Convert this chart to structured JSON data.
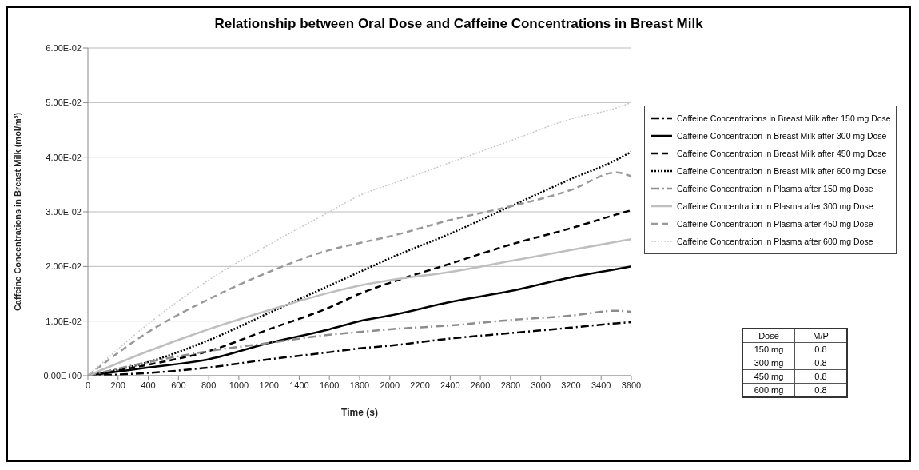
{
  "chart_data": {
    "type": "line",
    "title": "Relationship between Oral Dose and Caffeine Concentrations in Breast Milk",
    "xlabel": "Time (s)",
    "ylabel": "Caffeine Concentrations in Breast Milk (mol/m³)",
    "x": [
      0,
      400,
      800,
      1200,
      1600,
      1800,
      2000,
      2400,
      2800,
      3200,
      3500,
      3600
    ],
    "series": [
      {
        "name": "Caffeine Concentrations in Breast Milk after 150 mg Dose",
        "color": "#000000",
        "line_style": "dashdot",
        "values": [
          0,
          0.0005,
          0.0015,
          0.003,
          0.0043,
          0.005,
          0.0055,
          0.0068,
          0.0078,
          0.0088,
          0.0096,
          0.0098
        ]
      },
      {
        "name": "Caffeine Concentration in Breast Milk after 300 mg Dose",
        "color": "#000000",
        "line_style": "solid",
        "values": [
          0,
          0.0015,
          0.003,
          0.006,
          0.0085,
          0.01,
          0.011,
          0.0135,
          0.0155,
          0.018,
          0.0195,
          0.02
        ]
      },
      {
        "name": "Caffeine Concentration in Breast Milk after 450 mg Dose",
        "color": "#000000",
        "line_style": "dashed",
        "values": [
          0,
          0.002,
          0.0045,
          0.0085,
          0.0125,
          0.015,
          0.017,
          0.0205,
          0.024,
          0.027,
          0.0295,
          0.0303
        ]
      },
      {
        "name": "Caffeine Concentration in Breast Milk after 600 mg Dose",
        "color": "#000000",
        "line_style": "dotted",
        "values": [
          0,
          0.0025,
          0.0065,
          0.0115,
          0.0165,
          0.019,
          0.0215,
          0.026,
          0.031,
          0.036,
          0.0395,
          0.041
        ]
      },
      {
        "name": "Caffeine Concentration in Plasma after 150 mg Dose",
        "color": "#8c8c8c",
        "line_style": "dashdot",
        "values": [
          0,
          0.0025,
          0.0045,
          0.006,
          0.0075,
          0.008,
          0.0085,
          0.0092,
          0.0102,
          0.011,
          0.0119,
          0.0117
        ]
      },
      {
        "name": "Caffeine Concentration in Plasma after 300 mg Dose",
        "color": "#bfbfbf",
        "line_style": "solid",
        "values": [
          0,
          0.0045,
          0.0085,
          0.012,
          0.0152,
          0.0165,
          0.0175,
          0.019,
          0.021,
          0.023,
          0.0245,
          0.025
        ]
      },
      {
        "name": "Caffeine Concentration in Plasma after 450 mg Dose",
        "color": "#999999",
        "line_style": "dashed",
        "values": [
          0,
          0.008,
          0.014,
          0.019,
          0.023,
          0.0243,
          0.0255,
          0.0285,
          0.031,
          0.034,
          0.0372,
          0.0365
        ]
      },
      {
        "name": "Caffeine Concentration in Plasma after 600 mg Dose",
        "color": "#c8c8c8",
        "line_style": "dotted",
        "values": [
          0,
          0.0095,
          0.0175,
          0.024,
          0.03,
          0.033,
          0.035,
          0.039,
          0.043,
          0.047,
          0.049,
          0.05
        ]
      }
    ],
    "xlim": [
      0,
      3600
    ],
    "xticks": [
      0,
      200,
      400,
      600,
      800,
      1000,
      1200,
      1400,
      1600,
      1800,
      2000,
      2200,
      2400,
      2600,
      2800,
      3000,
      3200,
      3400,
      3600
    ],
    "ylim": [
      0,
      0.06
    ],
    "yticks": [
      {
        "value": 0,
        "label": "0.00E+00"
      },
      {
        "value": 0.01,
        "label": "1.00E-02"
      },
      {
        "value": 0.02,
        "label": "2.00E-02"
      },
      {
        "value": 0.03,
        "label": "3.00E-02"
      },
      {
        "value": 0.04,
        "label": "4.00E-02"
      },
      {
        "value": 0.05,
        "label": "5.00E-02"
      },
      {
        "value": 0.06,
        "label": "6.00E-02"
      }
    ],
    "grid": "y",
    "legend": "right",
    "marker": "none",
    "annotations": [
      "Dose",
      "M/P",
      "150 mg",
      "0.8",
      "300 mg",
      "0.8",
      "450 mg",
      "0.8",
      "600 mg",
      "0.8"
    ]
  }
}
